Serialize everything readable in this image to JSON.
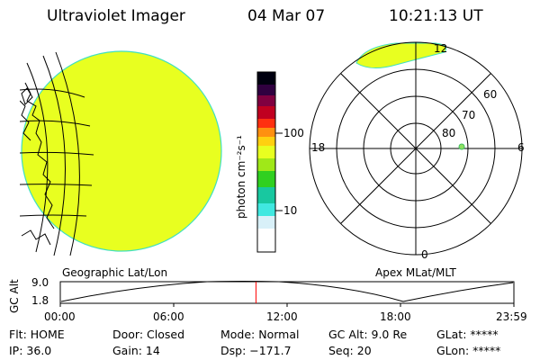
{
  "header": {
    "instrument": "Ultraviolet Imager",
    "date": "04 Mar 07",
    "time": "10:21:13 UT"
  },
  "colorbar": {
    "unit_label": "photon cm⁻²s⁻¹",
    "ticks": [
      "100",
      "10"
    ],
    "colors": [
      "#ffffff",
      "#d8f0f8",
      "#40e8e0",
      "#18c8a0",
      "#30d020",
      "#a0e818",
      "#e8ff20",
      "#ffd010",
      "#ff9010",
      "#ff3010",
      "#c00020",
      "#800040",
      "#300040",
      "#000010"
    ]
  },
  "left_panel": {
    "caption": "Geographic Lat/Lon",
    "image_color": "#e8ff20"
  },
  "right_panel": {
    "caption": "Apex MLat/MLT",
    "mlt_labels": {
      "top": "12",
      "left": "18",
      "right": "6",
      "bottom": "0"
    },
    "lat_labels": [
      "60",
      "70",
      "80"
    ]
  },
  "timeline": {
    "y_axis_title": "GC Alt",
    "y_ticks": [
      "9.0",
      "1.8"
    ],
    "x_ticks": [
      "00:00",
      "06:00",
      "12:00",
      "18:00",
      "23:59"
    ],
    "current_time_fraction": 0.4314
  },
  "footer": {
    "flt": "Flt: HOME",
    "ip": "IP: 36.0",
    "door": "Door: Closed",
    "gain": "Gain: 14",
    "mode": "Mode: Normal",
    "dsp": "Dsp: −171.7",
    "gcalt": "GC Alt: 9.0 Re",
    "seq": "Seq: 20",
    "glat": "GLat: *****",
    "glon": "GLon: *****"
  }
}
